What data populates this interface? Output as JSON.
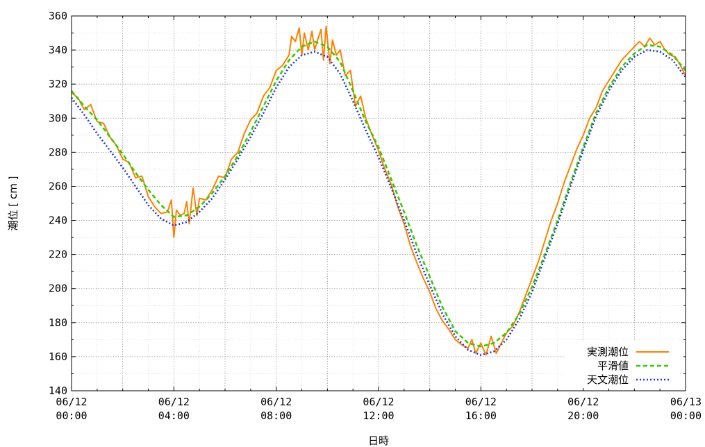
{
  "chart_data": {
    "type": "line",
    "title": "",
    "xlabel": "日時",
    "ylabel": "潮位 [ cm ]",
    "ylim": [
      140,
      360
    ],
    "xlim_hours": [
      0,
      24
    ],
    "grid": true,
    "legend_position": "bottom-right",
    "y_ticks": [
      "140",
      "160",
      "180",
      "200",
      "220",
      "240",
      "260",
      "280",
      "300",
      "320",
      "340",
      "360"
    ],
    "x_ticks": [
      {
        "hour": 0,
        "date": "06/12",
        "time": "00:00"
      },
      {
        "hour": 4,
        "date": "06/12",
        "time": "04:00"
      },
      {
        "hour": 8,
        "date": "06/12",
        "time": "08:00"
      },
      {
        "hour": 12,
        "date": "06/12",
        "time": "12:00"
      },
      {
        "hour": 16,
        "date": "06/12",
        "time": "16:00"
      },
      {
        "hour": 20,
        "date": "06/12",
        "time": "20:00"
      },
      {
        "hour": 24,
        "date": "06/13",
        "time": "00:00"
      }
    ],
    "series": [
      {
        "name": "実測潮位",
        "color": "#ff8000",
        "style": "solid",
        "values": [
          [
            0.0,
            315
          ],
          [
            0.25,
            312
          ],
          [
            0.5,
            305
          ],
          [
            0.75,
            308
          ],
          [
            1.0,
            298
          ],
          [
            1.25,
            297
          ],
          [
            1.5,
            289
          ],
          [
            1.75,
            284
          ],
          [
            2.0,
            276
          ],
          [
            2.25,
            274
          ],
          [
            2.5,
            265
          ],
          [
            2.75,
            266
          ],
          [
            3.0,
            254
          ],
          [
            3.25,
            248
          ],
          [
            3.5,
            244
          ],
          [
            3.75,
            245
          ],
          [
            3.9,
            252
          ],
          [
            4.0,
            230
          ],
          [
            4.1,
            246
          ],
          [
            4.25,
            243
          ],
          [
            4.4,
            244
          ],
          [
            4.5,
            251
          ],
          [
            4.6,
            238
          ],
          [
            4.75,
            259
          ],
          [
            4.9,
            243
          ],
          [
            5.0,
            253
          ],
          [
            5.25,
            252
          ],
          [
            5.5,
            258
          ],
          [
            5.75,
            266
          ],
          [
            6.0,
            265
          ],
          [
            6.25,
            276
          ],
          [
            6.5,
            280
          ],
          [
            6.75,
            291
          ],
          [
            7.0,
            299
          ],
          [
            7.25,
            303
          ],
          [
            7.5,
            313
          ],
          [
            7.75,
            318
          ],
          [
            8.0,
            328
          ],
          [
            8.25,
            331
          ],
          [
            8.5,
            337
          ],
          [
            8.6,
            348
          ],
          [
            8.75,
            345
          ],
          [
            8.9,
            353
          ],
          [
            9.0,
            337
          ],
          [
            9.1,
            350
          ],
          [
            9.25,
            340
          ],
          [
            9.4,
            351
          ],
          [
            9.5,
            340
          ],
          [
            9.6,
            345
          ],
          [
            9.75,
            352
          ],
          [
            9.85,
            334
          ],
          [
            9.95,
            354
          ],
          [
            10.1,
            332
          ],
          [
            10.2,
            346
          ],
          [
            10.35,
            337
          ],
          [
            10.5,
            340
          ],
          [
            10.7,
            325
          ],
          [
            10.9,
            328
          ],
          [
            11.1,
            307
          ],
          [
            11.3,
            313
          ],
          [
            11.5,
            300
          ],
          [
            11.75,
            290
          ],
          [
            12.0,
            281
          ],
          [
            12.25,
            270
          ],
          [
            12.5,
            261
          ],
          [
            12.75,
            248
          ],
          [
            13.0,
            238
          ],
          [
            13.25,
            225
          ],
          [
            13.5,
            215
          ],
          [
            13.75,
            206
          ],
          [
            14.0,
            198
          ],
          [
            14.25,
            188
          ],
          [
            14.5,
            181
          ],
          [
            14.75,
            176
          ],
          [
            15.0,
            170
          ],
          [
            15.25,
            167
          ],
          [
            15.5,
            165
          ],
          [
            15.65,
            170
          ],
          [
            15.8,
            162
          ],
          [
            16.0,
            168
          ],
          [
            16.2,
            161
          ],
          [
            16.4,
            172
          ],
          [
            16.6,
            162
          ],
          [
            16.8,
            168
          ],
          [
            17.0,
            174
          ],
          [
            17.25,
            178
          ],
          [
            17.5,
            186
          ],
          [
            17.75,
            196
          ],
          [
            18.0,
            206
          ],
          [
            18.25,
            216
          ],
          [
            18.5,
            228
          ],
          [
            18.75,
            240
          ],
          [
            19.0,
            250
          ],
          [
            19.25,
            262
          ],
          [
            19.5,
            272
          ],
          [
            19.75,
            282
          ],
          [
            20.0,
            290
          ],
          [
            20.25,
            300
          ],
          [
            20.5,
            306
          ],
          [
            20.75,
            316
          ],
          [
            21.0,
            322
          ],
          [
            21.25,
            328
          ],
          [
            21.5,
            334
          ],
          [
            21.75,
            338
          ],
          [
            22.0,
            342
          ],
          [
            22.2,
            345
          ],
          [
            22.4,
            342
          ],
          [
            22.6,
            347
          ],
          [
            22.8,
            343
          ],
          [
            23.0,
            345
          ],
          [
            23.2,
            340
          ],
          [
            23.4,
            337
          ],
          [
            23.6,
            336
          ],
          [
            23.8,
            331
          ],
          [
            24.0,
            325
          ]
        ]
      },
      {
        "name": "平滑値",
        "color": "#33cc00",
        "style": "dashed",
        "values": [
          [
            0,
            316
          ],
          [
            0.5,
            307
          ],
          [
            1,
            299
          ],
          [
            1.5,
            289
          ],
          [
            2,
            279
          ],
          [
            2.5,
            268
          ],
          [
            3,
            258
          ],
          [
            3.5,
            249
          ],
          [
            4,
            242
          ],
          [
            4.5,
            243
          ],
          [
            5,
            248
          ],
          [
            5.5,
            256
          ],
          [
            6,
            266
          ],
          [
            6.5,
            278
          ],
          [
            7,
            292
          ],
          [
            7.5,
            307
          ],
          [
            8,
            322
          ],
          [
            8.5,
            334
          ],
          [
            9,
            342
          ],
          [
            9.5,
            345
          ],
          [
            10,
            342
          ],
          [
            10.5,
            333
          ],
          [
            11,
            316
          ],
          [
            11.5,
            298
          ],
          [
            12,
            283
          ],
          [
            12.5,
            264
          ],
          [
            13,
            245
          ],
          [
            13.5,
            225
          ],
          [
            14,
            207
          ],
          [
            14.5,
            189
          ],
          [
            15,
            175
          ],
          [
            15.5,
            168
          ],
          [
            16,
            166
          ],
          [
            16.5,
            168
          ],
          [
            17,
            174
          ],
          [
            17.5,
            185
          ],
          [
            18,
            201
          ],
          [
            18.5,
            220
          ],
          [
            19,
            240
          ],
          [
            19.5,
            262
          ],
          [
            20,
            283
          ],
          [
            20.5,
            303
          ],
          [
            21,
            318
          ],
          [
            21.5,
            330
          ],
          [
            22,
            338
          ],
          [
            22.5,
            343
          ],
          [
            23,
            342
          ],
          [
            23.5,
            337
          ],
          [
            24,
            328
          ]
        ]
      },
      {
        "name": "天文潮位",
        "color": "#2233dd",
        "style": "dotted",
        "values": [
          [
            0,
            312
          ],
          [
            0.5,
            302
          ],
          [
            1,
            291
          ],
          [
            1.5,
            281
          ],
          [
            2,
            271
          ],
          [
            2.5,
            260
          ],
          [
            3,
            249
          ],
          [
            3.5,
            241
          ],
          [
            4,
            237
          ],
          [
            4.5,
            239
          ],
          [
            5,
            245
          ],
          [
            5.5,
            253
          ],
          [
            6,
            264
          ],
          [
            6.5,
            276
          ],
          [
            7,
            289
          ],
          [
            7.5,
            303
          ],
          [
            8,
            318
          ],
          [
            8.5,
            330
          ],
          [
            9,
            337
          ],
          [
            9.5,
            339
          ],
          [
            10,
            336
          ],
          [
            10.5,
            326
          ],
          [
            11,
            310
          ],
          [
            11.5,
            293
          ],
          [
            12,
            277
          ],
          [
            12.5,
            259
          ],
          [
            13,
            240
          ],
          [
            13.5,
            220
          ],
          [
            14,
            202
          ],
          [
            14.5,
            185
          ],
          [
            15,
            172
          ],
          [
            15.5,
            164
          ],
          [
            16,
            161
          ],
          [
            16.5,
            163
          ],
          [
            17,
            170
          ],
          [
            17.5,
            182
          ],
          [
            18,
            198
          ],
          [
            18.5,
            218
          ],
          [
            19,
            238
          ],
          [
            19.5,
            260
          ],
          [
            20,
            281
          ],
          [
            20.5,
            301
          ],
          [
            21,
            316
          ],
          [
            21.5,
            328
          ],
          [
            22,
            336
          ],
          [
            22.5,
            340
          ],
          [
            23,
            339
          ],
          [
            23.5,
            334
          ],
          [
            24,
            324
          ]
        ]
      }
    ]
  }
}
